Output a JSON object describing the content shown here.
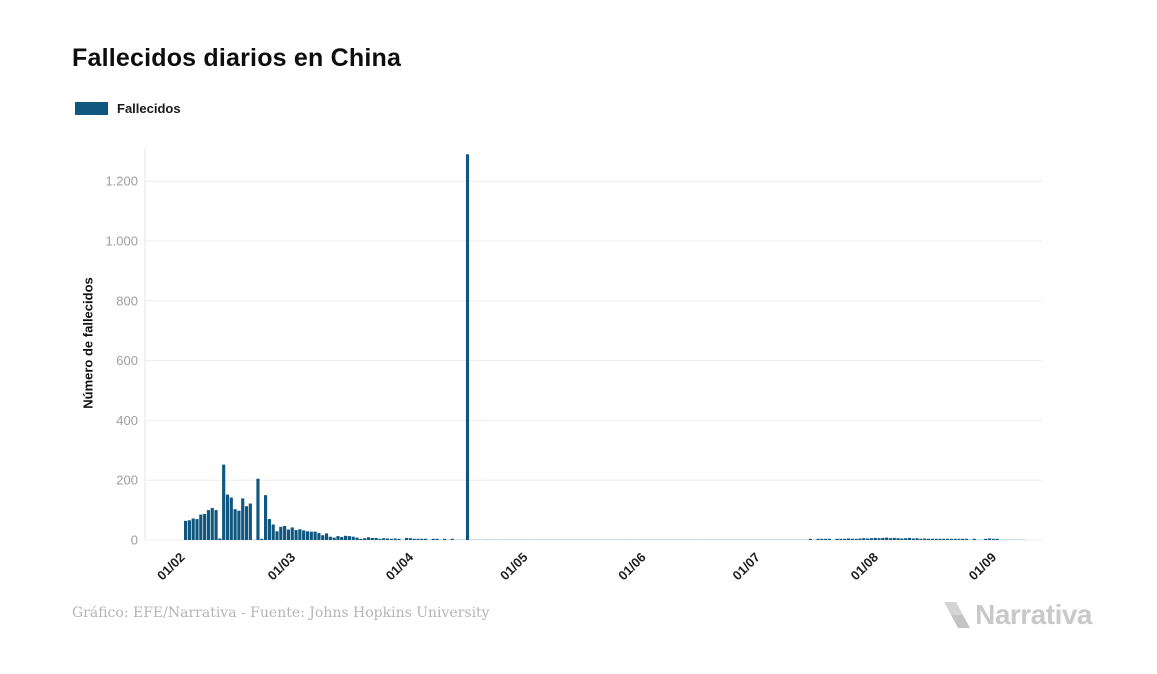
{
  "title": "Fallecidos diarios en China",
  "legend": {
    "label": "Fallecidos",
    "swatch_color": "#0f577f"
  },
  "footer": {
    "credit": "Gráfico: EFE/Narrativa - Fuente: Johns Hopkins University"
  },
  "logo": {
    "text": "Narrativa"
  },
  "chart_data": {
    "type": "bar",
    "title": "Fallecidos diarios en China",
    "series_name": "Fallecidos",
    "xlabel": "",
    "ylabel": "Número de fallecidos",
    "bar_color": "#0f577f",
    "zero_sliver_color": "#a3c2d6",
    "grid": true,
    "legend_position": "top-left",
    "ylim": [
      0,
      1300
    ],
    "y_ticks": [
      {
        "value": 0,
        "label": "0"
      },
      {
        "value": 200,
        "label": "200"
      },
      {
        "value": 400,
        "label": "400"
      },
      {
        "value": 600,
        "label": "600"
      },
      {
        "value": 800,
        "label": "800"
      },
      {
        "value": 1000,
        "label": "1.000"
      },
      {
        "value": 1200,
        "label": "1.200"
      }
    ],
    "x_ticks": [
      {
        "label": "01/02",
        "day_index": 0
      },
      {
        "label": "01/03",
        "day_index": 29
      },
      {
        "label": "01/04",
        "day_index": 60
      },
      {
        "label": "01/05",
        "day_index": 90
      },
      {
        "label": "01/06",
        "day_index": 121
      },
      {
        "label": "01/07",
        "day_index": 151
      },
      {
        "label": "01/08",
        "day_index": 182
      },
      {
        "label": "01/09",
        "day_index": 213
      }
    ],
    "start_date_label": "01/02",
    "peak_value": 1290,
    "values": [
      64,
      66,
      72,
      70,
      85,
      87,
      100,
      107,
      100,
      5,
      252,
      152,
      142,
      103,
      98,
      139,
      113,
      122,
      0,
      205,
      2,
      150,
      70,
      52,
      29,
      44,
      47,
      35,
      42,
      33,
      36,
      32,
      29,
      28,
      28,
      23,
      16,
      22,
      11,
      8,
      13,
      10,
      14,
      13,
      11,
      8,
      4,
      6,
      9,
      7,
      7,
      4,
      6,
      5,
      3,
      5,
      4,
      1,
      7,
      6,
      4,
      4,
      3,
      2,
      0,
      2,
      2,
      1,
      3,
      0,
      2,
      0,
      1,
      0,
      1290,
      0,
      1,
      0,
      0,
      1,
      0,
      0,
      0,
      0,
      0,
      0,
      0,
      0,
      0,
      0,
      0,
      0,
      0,
      0,
      0,
      0,
      0,
      0,
      0,
      0,
      0,
      0,
      0,
      0,
      0,
      0,
      0,
      0,
      0,
      0,
      0,
      0,
      0,
      0,
      0,
      0,
      0,
      0,
      0,
      0,
      0,
      0,
      0,
      0,
      0,
      0,
      0,
      0,
      0,
      0,
      0,
      0,
      0,
      0,
      0,
      0,
      0,
      0,
      0,
      0,
      0,
      0,
      0,
      0,
      0,
      0,
      0,
      0,
      0,
      0,
      0,
      0,
      0,
      0,
      0,
      0,
      0,
      0,
      0,
      0,
      0,
      0,
      0,
      1,
      2,
      1,
      2,
      3,
      2,
      2,
      1,
      2,
      4,
      3,
      5,
      4,
      4,
      5,
      6,
      5,
      6,
      7,
      6,
      7,
      8,
      6,
      7,
      6,
      5,
      6,
      7,
      5,
      6,
      4,
      5,
      4,
      3,
      4,
      3,
      3,
      2,
      3,
      2,
      3,
      2,
      2,
      1,
      2,
      1,
      1,
      4,
      5,
      3,
      2,
      1,
      0,
      0,
      0,
      0,
      0,
      0
    ]
  }
}
